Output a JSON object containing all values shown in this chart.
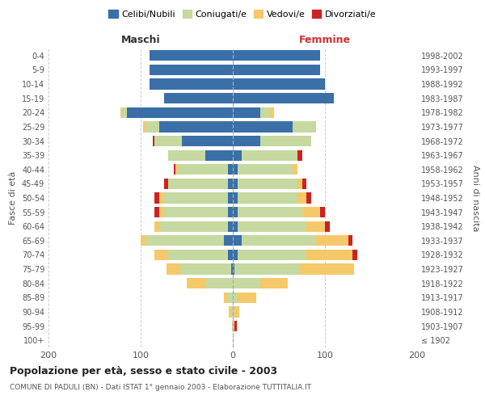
{
  "age_groups": [
    "100+",
    "95-99",
    "90-94",
    "85-89",
    "80-84",
    "75-79",
    "70-74",
    "65-69",
    "60-64",
    "55-59",
    "50-54",
    "45-49",
    "40-44",
    "35-39",
    "30-34",
    "25-29",
    "20-24",
    "15-19",
    "10-14",
    "5-9",
    "0-4"
  ],
  "birth_years": [
    "≤ 1902",
    "1903-1907",
    "1908-1912",
    "1913-1917",
    "1918-1922",
    "1923-1927",
    "1928-1932",
    "1933-1937",
    "1938-1942",
    "1943-1947",
    "1948-1952",
    "1953-1957",
    "1958-1962",
    "1963-1967",
    "1968-1972",
    "1973-1977",
    "1978-1982",
    "1983-1987",
    "1988-1992",
    "1993-1997",
    "1998-2002"
  ],
  "males": {
    "celibi": [
      0,
      0,
      0,
      0,
      0,
      2,
      5,
      10,
      5,
      5,
      5,
      5,
      5,
      30,
      55,
      80,
      115,
      75,
      90,
      90,
      90
    ],
    "coniugati": [
      0,
      1,
      2,
      5,
      30,
      55,
      65,
      85,
      75,
      70,
      70,
      65,
      55,
      40,
      30,
      15,
      5,
      0,
      0,
      0,
      0
    ],
    "vedovi": [
      0,
      0,
      2,
      5,
      20,
      15,
      15,
      5,
      5,
      5,
      5,
      0,
      2,
      0,
      0,
      2,
      2,
      0,
      0,
      0,
      0
    ],
    "divorziati": [
      0,
      0,
      0,
      0,
      0,
      0,
      0,
      0,
      0,
      5,
      5,
      5,
      2,
      0,
      2,
      0,
      0,
      0,
      0,
      0,
      0
    ]
  },
  "females": {
    "nubili": [
      0,
      0,
      0,
      0,
      0,
      2,
      5,
      10,
      5,
      5,
      5,
      5,
      5,
      10,
      30,
      65,
      30,
      110,
      100,
      95,
      95
    ],
    "coniugate": [
      0,
      0,
      2,
      5,
      30,
      70,
      75,
      80,
      75,
      70,
      65,
      65,
      60,
      60,
      55,
      25,
      10,
      0,
      0,
      0,
      0
    ],
    "vedove": [
      0,
      2,
      5,
      20,
      30,
      60,
      50,
      35,
      20,
      20,
      10,
      5,
      5,
      0,
      0,
      0,
      5,
      0,
      0,
      0,
      0
    ],
    "divorziate": [
      0,
      2,
      0,
      0,
      0,
      0,
      5,
      5,
      5,
      5,
      5,
      5,
      0,
      5,
      0,
      0,
      0,
      0,
      0,
      0,
      0
    ]
  },
  "colors": {
    "celibi_nubili": "#3a6fa8",
    "coniugati_e": "#c5d9a0",
    "vedovi_e": "#f5c96a",
    "divorziati_e": "#cc2222"
  },
  "xlim": 200,
  "title": "Popolazione per età, sesso e stato civile - 2003",
  "subtitle": "COMUNE DI PADULI (BN) - Dati ISTAT 1° gennaio 2003 - Elaborazione TUTTITALIA.IT",
  "ylabel_left": "Fasce di età",
  "ylabel_right": "Anni di nascita",
  "xlabel_left": "Maschi",
  "xlabel_right": "Femmine",
  "background_color": "#ffffff",
  "grid_color": "#cccccc",
  "legend_labels": [
    "Celibi/Nubili",
    "Coniugati/e",
    "Vedovi/e",
    "Divorziati/e"
  ]
}
